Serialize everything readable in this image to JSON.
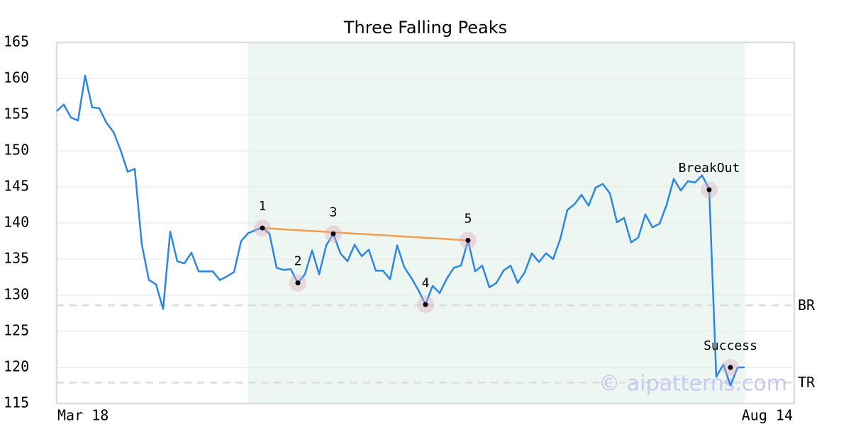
{
  "chart_data": {
    "type": "line",
    "title": "Three Falling Peaks",
    "x": [
      0,
      1,
      2,
      3,
      4,
      5,
      6,
      7,
      8,
      9,
      10,
      11,
      12,
      13,
      14,
      15,
      16,
      17,
      18,
      19,
      20,
      21,
      22,
      23,
      24,
      25,
      26,
      27,
      28,
      29,
      30,
      31,
      32,
      33,
      34,
      35,
      36,
      37,
      38,
      39,
      40,
      41,
      42,
      43,
      44,
      45,
      46,
      47,
      48,
      49,
      50,
      51,
      52,
      53,
      54,
      55,
      56,
      57,
      58,
      59,
      60,
      61,
      62,
      63,
      64,
      65,
      66,
      67,
      68,
      69,
      70,
      71,
      72,
      73,
      74,
      75,
      76,
      77,
      78,
      79,
      80,
      81,
      82,
      83,
      84,
      85,
      86,
      87,
      88,
      89,
      90,
      91,
      92,
      93,
      94,
      95,
      96,
      97
    ],
    "values": [
      155.5,
      156.4,
      154.6,
      154.2,
      160.4,
      156,
      155.9,
      153.9,
      152.6,
      150.1,
      147.1,
      147.5,
      137,
      132.1,
      131.5,
      128.1,
      138.8,
      134.7,
      134.4,
      135.9,
      133.3,
      133.3,
      133.3,
      132.1,
      132.6,
      133.2,
      137.5,
      138.6,
      139,
      139.4,
      138.5,
      133.8,
      133.5,
      133.6,
      131.7,
      132.9,
      136.2,
      132.9,
      136.9,
      138.5,
      135.8,
      134.7,
      137,
      135.4,
      136.3,
      133.4,
      133.4,
      132.2,
      136.9,
      133.9,
      132.4,
      130.7,
      128.7,
      131.3,
      130.3,
      132.3,
      133.8,
      134.1,
      137.6,
      133.3,
      134.1,
      131.1,
      131.7,
      133.4,
      134.1,
      131.7,
      133.2,
      135.8,
      134.6,
      135.8,
      135,
      137.8,
      141.8,
      142.6,
      143.9,
      142.4,
      144.9,
      145.4,
      144.1,
      140.1,
      140.7,
      137.3,
      138,
      141.2,
      139.4,
      139.9,
      142.5,
      146.1,
      144.5,
      145.8,
      145.6,
      146.6,
      144.7,
      118.7,
      120.4,
      117.5,
      120,
      120
    ],
    "color": "#2b87e3",
    "xlim": [
      0,
      104
    ],
    "xticks": [
      {
        "value": 0,
        "label": "Mar 18"
      },
      {
        "value": 104,
        "label": "Aug 14"
      }
    ],
    "ylim": [
      115,
      165
    ],
    "yticks": [
      115,
      120,
      125,
      130,
      135,
      140,
      145,
      150,
      155,
      160,
      165
    ],
    "grid": true,
    "shade": [
      27,
      97
    ],
    "shade_color": "#eef6f2",
    "hlines": [
      {
        "label": "BR",
        "value": 128.6
      },
      {
        "label": "TR",
        "value": 117.9
      }
    ],
    "trendline": {
      "x": [
        29,
        58
      ],
      "y": [
        139.3,
        137.6
      ],
      "color": "#f39c4a"
    },
    "markers": [
      {
        "label": "1",
        "x": 29,
        "y": 139.3
      },
      {
        "label": "2",
        "x": 34,
        "y": 131.7
      },
      {
        "label": "3",
        "x": 39,
        "y": 138.5
      },
      {
        "label": "4",
        "x": 52,
        "y": 128.7
      },
      {
        "label": "5",
        "x": 58,
        "y": 137.6
      },
      {
        "label": "BreakOut",
        "x": 92,
        "y": 144.6
      },
      {
        "label": "Success",
        "x": 95,
        "y": 120
      }
    ],
    "watermark": "© aipatterns.com"
  }
}
